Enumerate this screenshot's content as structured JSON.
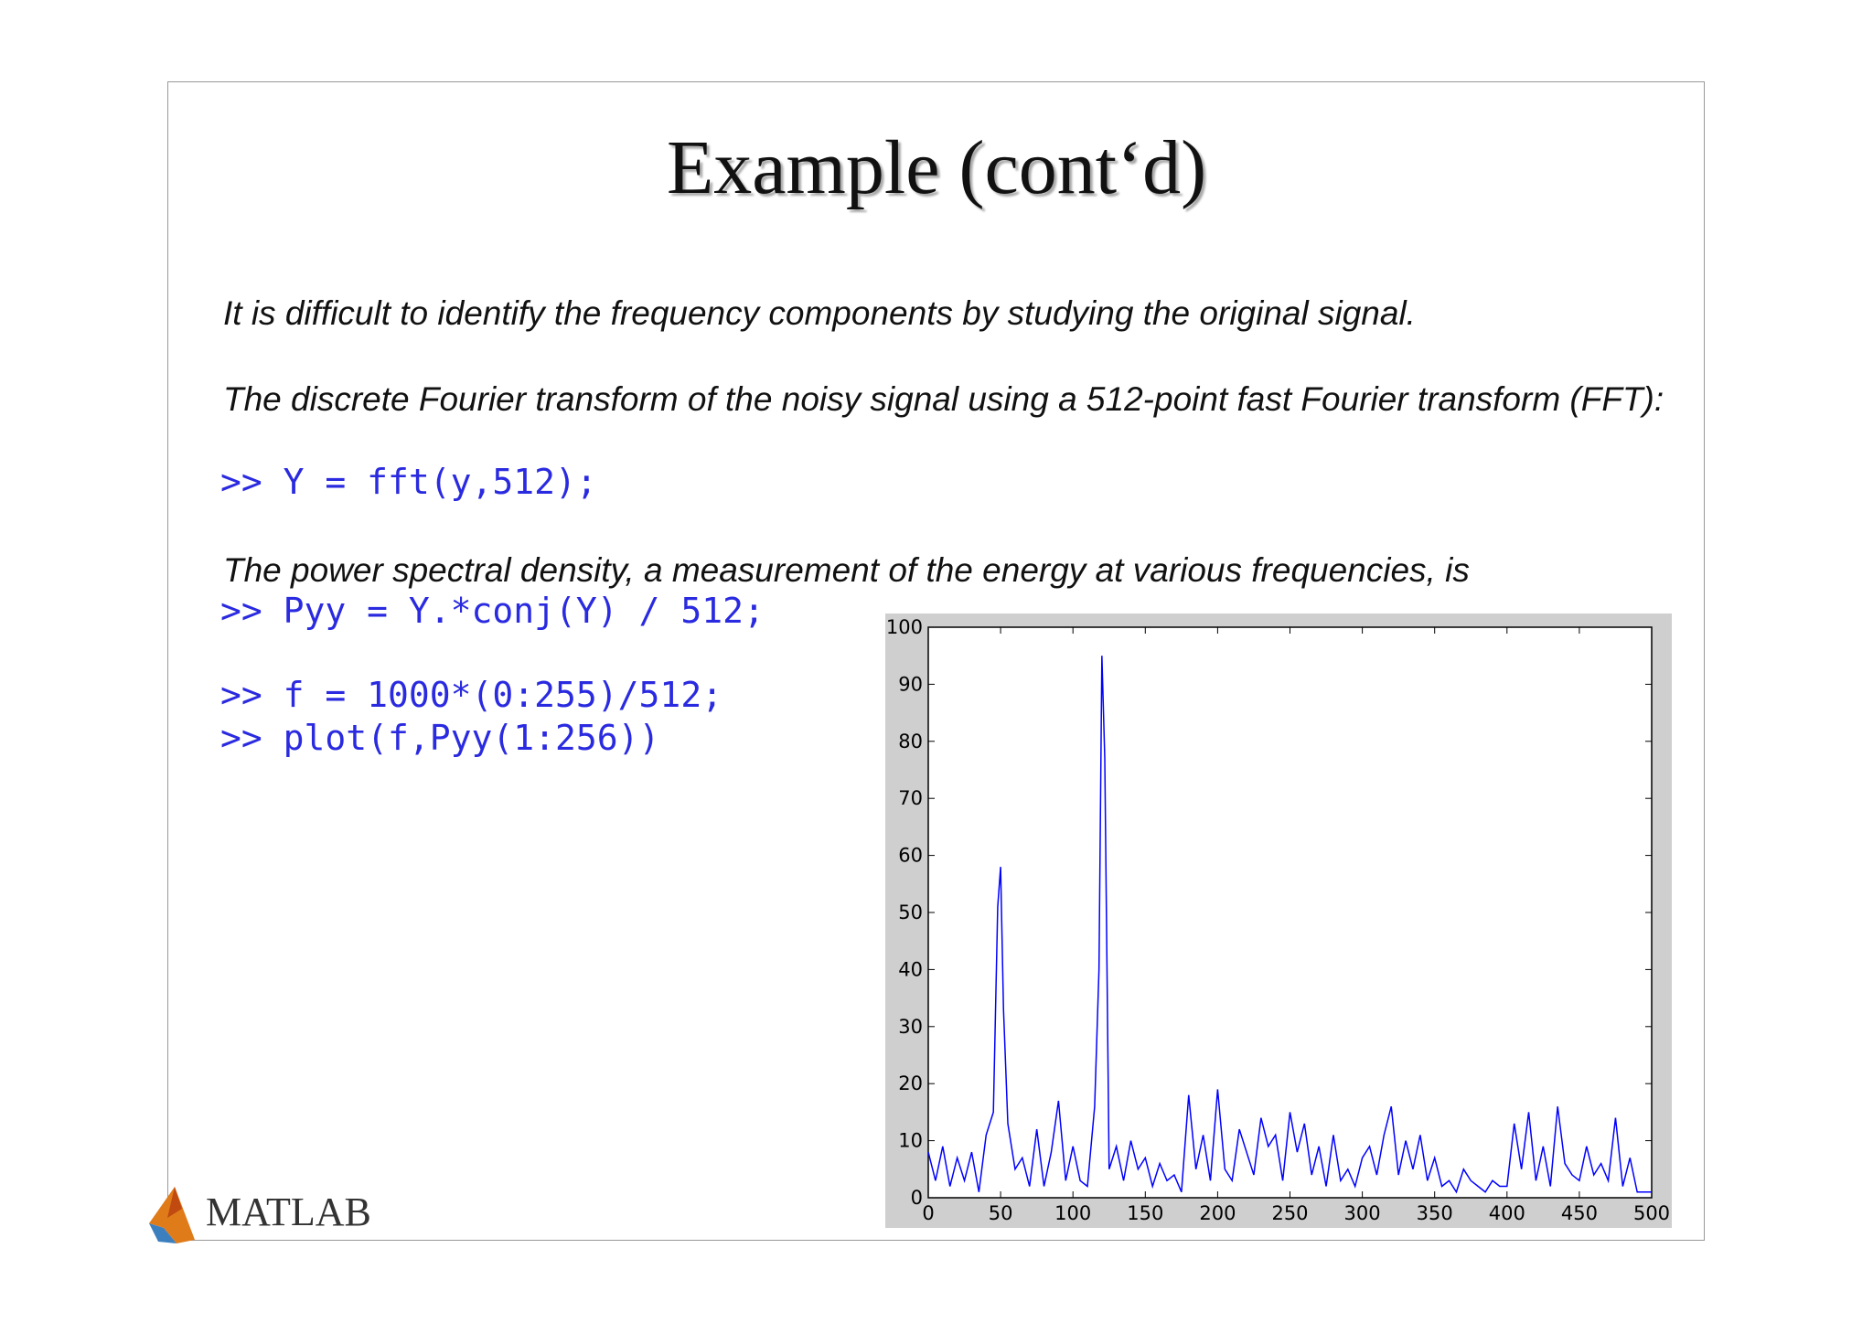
{
  "title": "Example (cont‘d)",
  "paragraphs": [
    "It is difficult to identify the frequency components by studying the original signal.",
    "The discrete Fourier transform of the noisy signal using a 512-point fast Fourier transform (FFT):",
    "The power spectral density, a measurement of the energy at various frequencies, is"
  ],
  "code": [
    ">> Y = fft(y,512);",
    ">> Pyy = Y.*conj(Y) / 512;",
    ">> f = 1000*(0:255)/512;",
    ">> plot(f,Pyy(1:256))"
  ],
  "logo_text": "MATLAB",
  "chart_data": {
    "type": "line",
    "x": [
      0,
      5,
      10,
      15,
      20,
      25,
      30,
      35,
      40,
      45,
      48,
      50,
      52,
      55,
      60,
      65,
      70,
      75,
      80,
      85,
      90,
      95,
      100,
      105,
      110,
      115,
      118,
      120,
      122,
      125,
      130,
      135,
      140,
      145,
      150,
      155,
      160,
      165,
      170,
      175,
      180,
      185,
      190,
      195,
      200,
      205,
      210,
      215,
      220,
      225,
      230,
      235,
      240,
      245,
      250,
      255,
      260,
      265,
      270,
      275,
      280,
      285,
      290,
      295,
      300,
      305,
      310,
      315,
      320,
      325,
      330,
      335,
      340,
      345,
      350,
      355,
      360,
      365,
      370,
      375,
      380,
      385,
      390,
      395,
      400,
      405,
      410,
      415,
      420,
      425,
      430,
      435,
      440,
      445,
      450,
      455,
      460,
      465,
      470,
      475,
      480,
      485,
      490,
      495,
      500
    ],
    "series": [
      {
        "color": "#0000ff",
        "values": [
          8,
          3,
          9,
          2,
          7,
          3,
          8,
          1,
          11,
          15,
          51,
          58,
          33,
          13,
          5,
          7,
          2,
          12,
          2,
          8,
          17,
          3,
          9,
          3,
          2,
          16,
          40,
          95,
          77,
          5,
          9,
          3,
          10,
          5,
          7,
          2,
          6,
          3,
          4,
          1,
          18,
          5,
          11,
          3,
          19,
          5,
          3,
          12,
          8,
          4,
          14,
          9,
          11,
          3,
          15,
          8,
          13,
          4,
          9,
          2,
          11,
          3,
          5,
          2,
          7,
          9,
          4,
          11,
          16,
          4,
          10,
          5,
          11,
          3,
          7,
          2,
          3,
          1,
          5,
          3,
          2,
          1,
          3,
          2,
          2,
          13,
          5,
          15,
          3,
          9,
          2,
          16,
          6,
          4,
          3,
          9,
          4,
          6,
          3,
          14,
          2,
          7,
          1,
          1,
          1
        ]
      }
    ],
    "xlim": [
      0,
      500
    ],
    "ylim": [
      0,
      100
    ],
    "xticks": [
      0,
      50,
      100,
      150,
      200,
      250,
      300,
      350,
      400,
      450,
      500
    ],
    "yticks": [
      0,
      10,
      20,
      30,
      40,
      50,
      60,
      70,
      80,
      90,
      100
    ]
  }
}
